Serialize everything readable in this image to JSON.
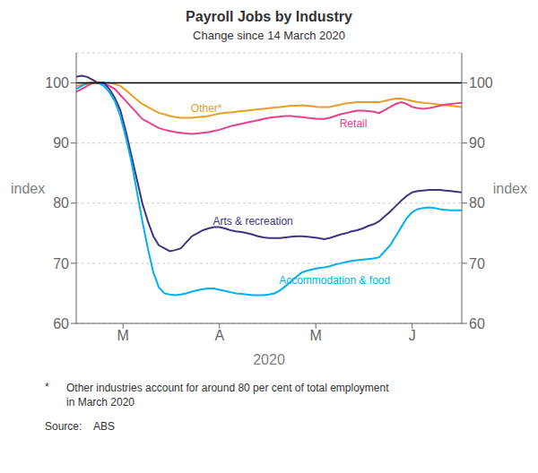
{
  "chart_data": {
    "type": "line",
    "title": "Payroll Jobs by Industry",
    "subtitle": "Change since 14 March 2020",
    "y_label": "index",
    "y2_label": "index",
    "x_label": "2020",
    "footnote_marker": "*",
    "footnote": "Other industries account for around 80 per cent of total employment\nin March 2020",
    "source": "Source:    ABS",
    "grid": "y",
    "hline": 100,
    "xlim": [
      0,
      70
    ],
    "xticks": [
      {
        "value": 8.5,
        "label": "M"
      },
      {
        "value": 26,
        "label": "A"
      },
      {
        "value": 43.5,
        "label": "M"
      },
      {
        "value": 61,
        "label": "J"
      }
    ],
    "ylim": [
      60,
      105
    ],
    "yticks": [
      60,
      70,
      80,
      90,
      100
    ],
    "y2lim": [
      60,
      105
    ],
    "y2ticks": [
      60,
      70,
      80,
      90,
      100
    ],
    "x": [
      0,
      1,
      2,
      3,
      4,
      5,
      6,
      7,
      8,
      9,
      10,
      11,
      12,
      13,
      14,
      15,
      16,
      17,
      18,
      19,
      20,
      21,
      22,
      23,
      24,
      25,
      26,
      27,
      28,
      29,
      30,
      31,
      32,
      33,
      34,
      35,
      36,
      37,
      38,
      39,
      40,
      41,
      42,
      43,
      44,
      45,
      46,
      47,
      48,
      49,
      50,
      51,
      52,
      53,
      54,
      55,
      56,
      57,
      58,
      59,
      60,
      61,
      62,
      63,
      64,
      65,
      66,
      67,
      68,
      69,
      70
    ],
    "series": [
      {
        "name": "Other*",
        "color": "#e8a020",
        "label_x": 20,
        "label_y": 95.8,
        "values": [
          99.5,
          99.7,
          99.8,
          100.0,
          100.0,
          100.0,
          100.0,
          99.8,
          99.5,
          98.8,
          98.0,
          97.2,
          96.5,
          96.0,
          95.5,
          95.0,
          94.8,
          94.5,
          94.3,
          94.2,
          94.2,
          94.2,
          94.3,
          94.4,
          94.5,
          94.7,
          94.9,
          95.0,
          95.1,
          95.2,
          95.3,
          95.4,
          95.5,
          95.6,
          95.7,
          95.8,
          95.9,
          96.0,
          96.1,
          96.2,
          96.2,
          96.3,
          96.2,
          96.1,
          96.0,
          96.0,
          96.0,
          96.2,
          96.4,
          96.6,
          96.7,
          96.8,
          96.8,
          96.8,
          96.8,
          96.8,
          97.0,
          97.2,
          97.4,
          97.4,
          97.2,
          97.0,
          96.8,
          96.7,
          96.6,
          96.5,
          96.4,
          96.3,
          96.2,
          96.1,
          96.0
        ]
      },
      {
        "name": "Retail",
        "color": "#e8408a",
        "label_x": 47,
        "label_y": 93.2,
        "values": [
          98.5,
          99.0,
          99.5,
          100.0,
          100.0,
          100.0,
          99.5,
          99.0,
          98.0,
          97.0,
          96.0,
          95.0,
          94.0,
          93.5,
          93.0,
          92.5,
          92.2,
          92.0,
          91.8,
          91.7,
          91.6,
          91.5,
          91.6,
          91.7,
          91.8,
          92.0,
          92.2,
          92.5,
          92.8,
          93.0,
          93.2,
          93.4,
          93.6,
          93.8,
          94.0,
          94.2,
          94.3,
          94.4,
          94.5,
          94.5,
          94.4,
          94.3,
          94.2,
          94.1,
          94.0,
          94.0,
          94.2,
          94.5,
          94.8,
          95.0,
          95.2,
          95.4,
          95.4,
          95.3,
          95.2,
          95.0,
          95.5,
          96.0,
          96.5,
          96.8,
          96.5,
          96.0,
          95.8,
          95.7,
          95.8,
          96.0,
          96.2,
          96.4,
          96.5,
          96.6,
          96.7
        ]
      },
      {
        "name": "Arts & recreation",
        "color": "#3d3580",
        "label_x": 24,
        "label_y": 77.0,
        "values": [
          101.0,
          101.2,
          101.0,
          100.5,
          100.0,
          100.0,
          99.0,
          97.5,
          95.5,
          92.0,
          88.0,
          84.0,
          80.0,
          77.0,
          74.5,
          73.0,
          72.5,
          72.0,
          72.2,
          72.5,
          73.5,
          74.5,
          75.0,
          75.5,
          75.8,
          76.0,
          76.0,
          75.8,
          75.5,
          75.3,
          75.2,
          75.0,
          74.8,
          74.5,
          74.3,
          74.2,
          74.2,
          74.2,
          74.3,
          74.4,
          74.5,
          74.5,
          74.4,
          74.3,
          74.2,
          74.0,
          74.2,
          74.5,
          74.8,
          75.0,
          75.3,
          75.5,
          75.8,
          76.2,
          76.5,
          77.0,
          77.8,
          78.6,
          79.5,
          80.4,
          81.2,
          81.8,
          82.0,
          82.1,
          82.2,
          82.2,
          82.2,
          82.1,
          82.0,
          81.9,
          81.8
        ]
      },
      {
        "name": "Accommodation & food",
        "color": "#00b0f0",
        "label_x": 36,
        "label_y": 67.2,
        "values": [
          99.0,
          99.5,
          100.0,
          100.0,
          100.0,
          99.5,
          98.5,
          97.0,
          94.5,
          91.0,
          87.0,
          82.0,
          77.0,
          72.5,
          68.5,
          66.0,
          65.0,
          64.8,
          64.7,
          64.8,
          65.0,
          65.3,
          65.5,
          65.7,
          65.8,
          65.8,
          65.6,
          65.4,
          65.2,
          65.0,
          64.9,
          64.8,
          64.7,
          64.7,
          64.7,
          64.8,
          65.0,
          65.5,
          66.2,
          67.0,
          67.8,
          68.5,
          68.8,
          69.0,
          69.2,
          69.3,
          69.5,
          69.8,
          70.0,
          70.2,
          70.4,
          70.5,
          70.6,
          70.7,
          70.8,
          71.0,
          72.0,
          73.0,
          74.5,
          76.0,
          77.5,
          78.5,
          79.0,
          79.2,
          79.3,
          79.2,
          79.0,
          78.9,
          78.8,
          78.8,
          78.8
        ]
      }
    ]
  }
}
